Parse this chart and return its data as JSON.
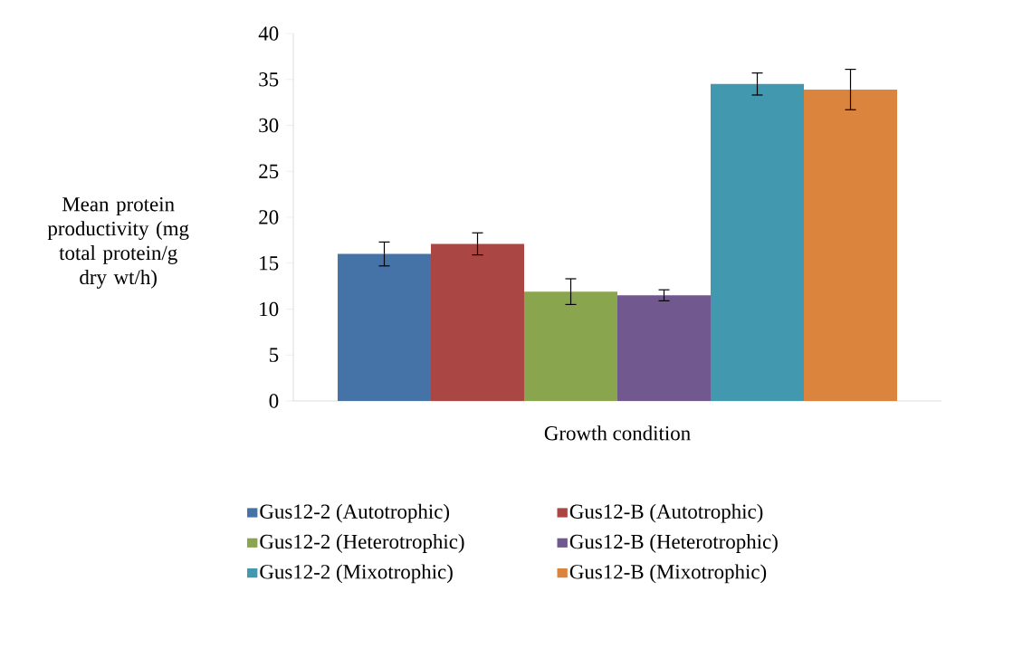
{
  "chart_data": {
    "type": "bar",
    "categories": [
      null
    ],
    "xlabel": "Growth condition",
    "ylabel": "Mean protein productivity (mg total protein/g dry wt/h)",
    "ylim": [
      0,
      40
    ],
    "yticks": [
      0,
      5,
      10,
      15,
      20,
      25,
      30,
      35,
      40
    ],
    "legend": "bottom",
    "series": [
      {
        "name": "Gus12-2 (Autotrophic)",
        "color": "#4572a7",
        "values": [
          16.0
        ],
        "errors": [
          1.3
        ]
      },
      {
        "name": "Gus12-B (Autotrophic)",
        "color": "#aa4643",
        "values": [
          17.1
        ],
        "errors": [
          1.2
        ]
      },
      {
        "name": "Gus12-2 (Heterotrophic)",
        "color": "#89a54e",
        "values": [
          11.9
        ],
        "errors": [
          1.4
        ]
      },
      {
        "name": "Gus12-B (Heterotrophic)",
        "color": "#71588f",
        "values": [
          11.5
        ],
        "errors": [
          0.6
        ]
      },
      {
        "name": "Gus12-2 (Mixotrophic)",
        "color": "#4198af",
        "values": [
          34.5
        ],
        "errors": [
          1.2
        ]
      },
      {
        "name": "Gus12-B (Mixotrophic)",
        "color": "#db843d",
        "values": [
          33.9
        ],
        "errors": [
          2.2
        ]
      }
    ]
  }
}
